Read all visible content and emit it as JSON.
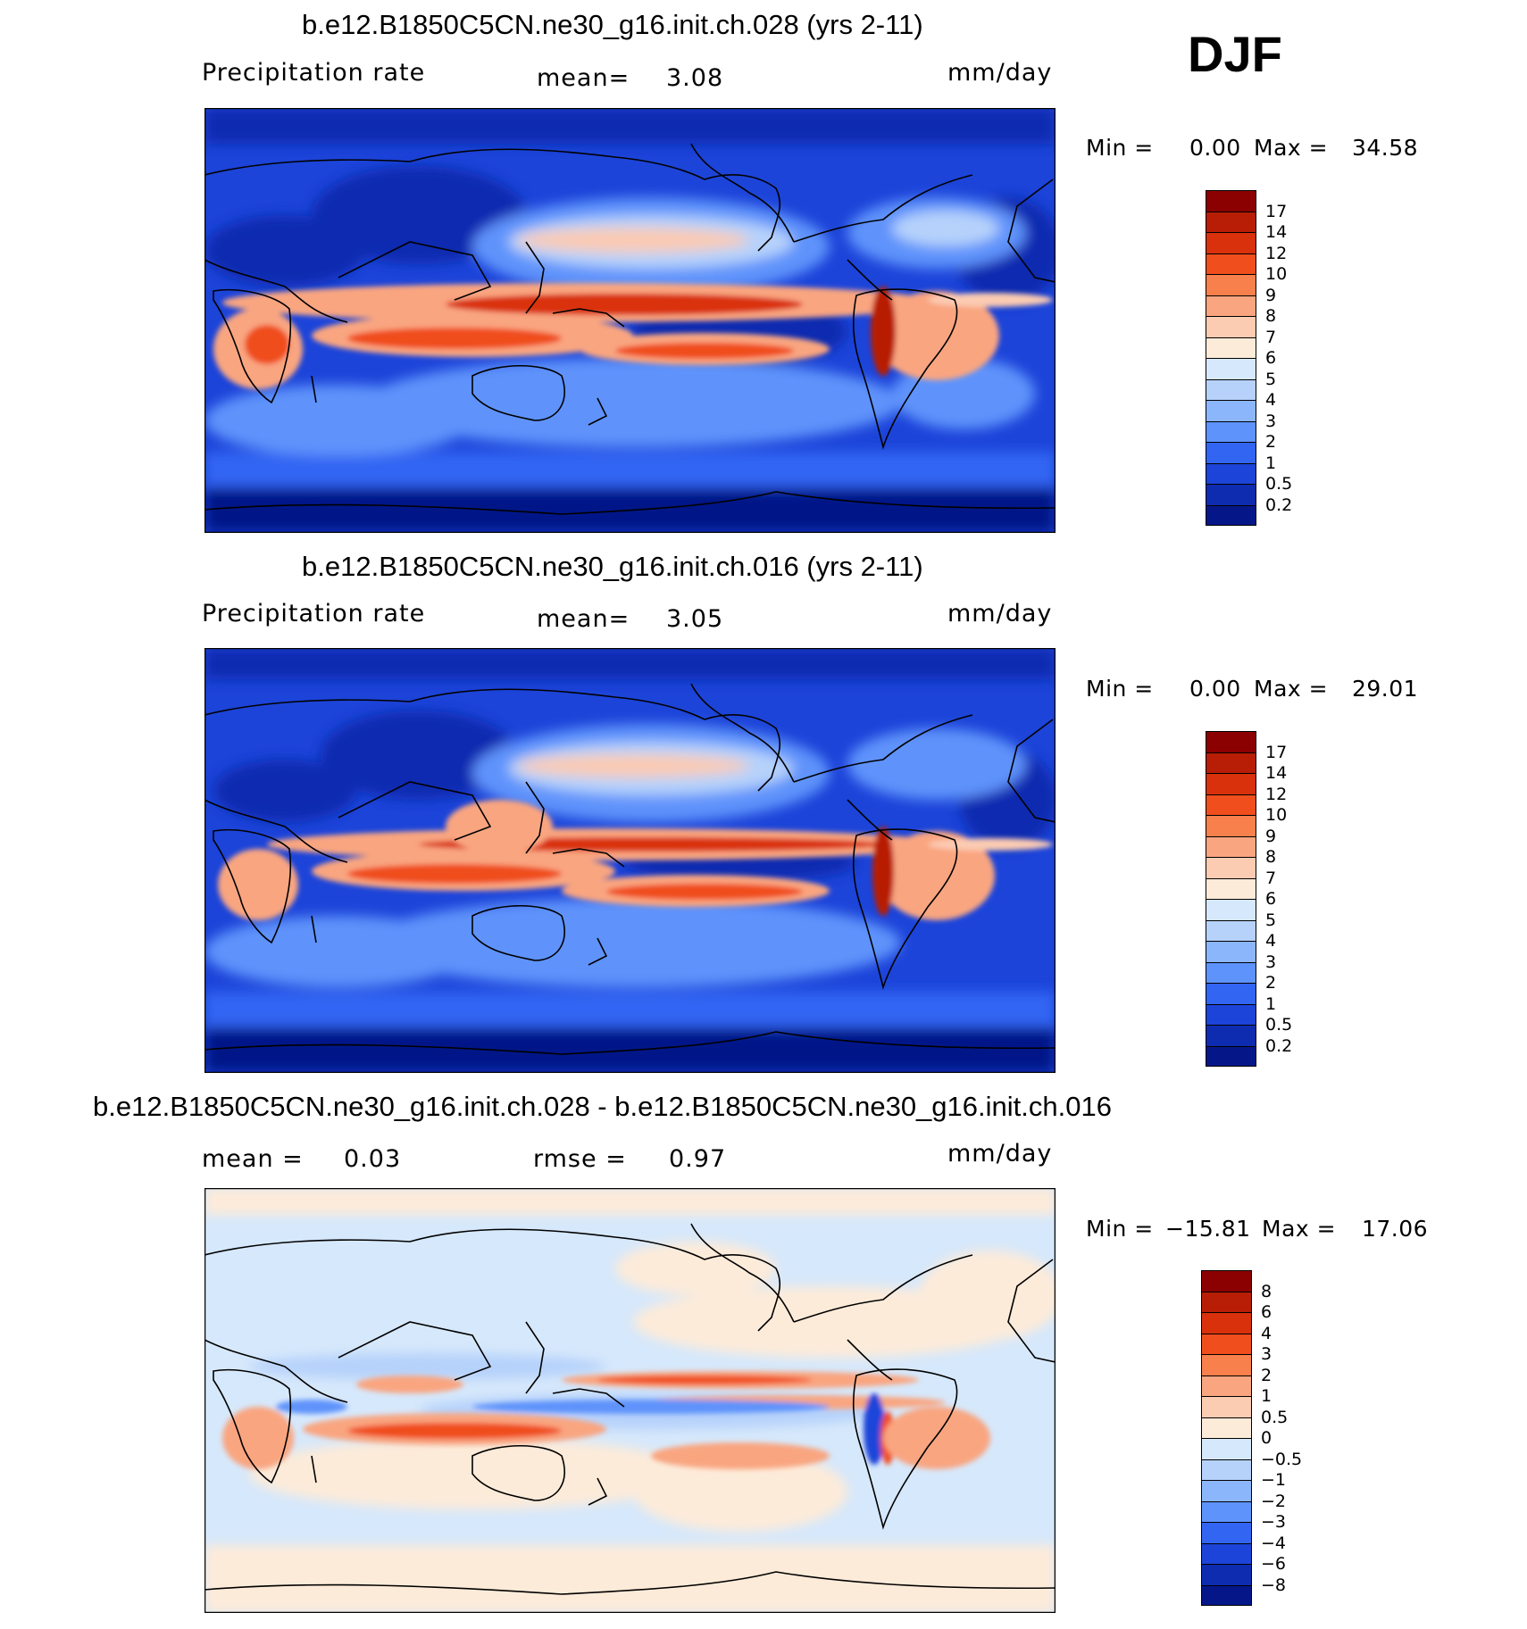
{
  "season_label": "DJF",
  "panels": [
    {
      "id": "top",
      "title": "b.e12.B1850C5CN.ne30_g16.init.ch.028 (yrs 2-11)",
      "left_label": "Precipitation  rate",
      "center_label": "mean=",
      "center_value": "3.08",
      "units": "mm/day",
      "min_label": "Min  =",
      "min_value": "0.00",
      "max_label": "Max  =",
      "max_value": "34.58",
      "kind": "abs"
    },
    {
      "id": "middle",
      "title": "b.e12.B1850C5CN.ne30_g16.init.ch.016 (yrs 2-11)",
      "left_label": "Precipitation  rate",
      "center_label": "mean=",
      "center_value": "3.05",
      "units": "mm/day",
      "min_label": "Min  =",
      "min_value": "0.00",
      "max_label": "Max  =",
      "max_value": "29.01",
      "kind": "abs"
    },
    {
      "id": "bottom",
      "title": "b.e12.B1850C5CN.ne30_g16.init.ch.028 - b.e12.B1850C5CN.ne30_g16.init.ch.016",
      "left_label": "mean  =",
      "left_value": "0.03",
      "center_label": "rmse  =",
      "center_value": "0.97",
      "units": "mm/day",
      "min_label": "Min  =",
      "min_value": "−15.81",
      "max_label": "Max  =",
      "max_value": "17.06",
      "kind": "diff"
    }
  ],
  "colorbars": {
    "abs": {
      "labels": [
        "17",
        "14",
        "12",
        "10",
        "9",
        "8",
        "7",
        "6",
        "5",
        "4",
        "3",
        "2",
        "1",
        "0.5",
        "0.2"
      ],
      "colors": [
        "#8b0000",
        "#b81e05",
        "#d9310b",
        "#f04e1d",
        "#f8804c",
        "#f9a580",
        "#fbcbb2",
        "#fdebd9",
        "#d6e8fb",
        "#b6d2fb",
        "#8cb6fb",
        "#5e93fb",
        "#3365f3",
        "#1c44d9",
        "#0e2cb0",
        "#051788"
      ]
    },
    "diff": {
      "labels": [
        "8",
        "6",
        "4",
        "3",
        "2",
        "1",
        "0.5",
        "0",
        "−0.5",
        "−1",
        "−2",
        "−3",
        "−4",
        "−6",
        "−8"
      ],
      "colors": [
        "#8b0000",
        "#b81e05",
        "#d9310b",
        "#f04e1d",
        "#f8804c",
        "#f9a580",
        "#fbcbb2",
        "#fdebd9",
        "#d6e8fb",
        "#b6d2fb",
        "#8cb6fb",
        "#5e93fb",
        "#3365f3",
        "#1c44d9",
        "#0e2cb0",
        "#051788"
      ]
    }
  }
}
